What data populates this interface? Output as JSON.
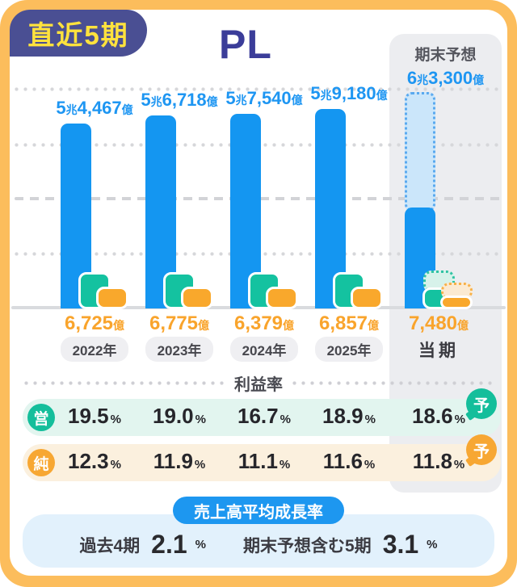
{
  "header": {
    "badge_label": "直近5期",
    "title": "PL",
    "forecast_panel_title": "期末予想"
  },
  "columns": [
    {
      "year": "2022年",
      "revenue": {
        "p1": "5",
        "u1": "兆",
        "p2": "4,467",
        "u2": "億"
      },
      "net": {
        "num": "6,725",
        "unit": "億"
      },
      "op_margin": "19.5",
      "net_margin": "12.3"
    },
    {
      "year": "2023年",
      "revenue": {
        "p1": "5",
        "u1": "兆",
        "p2": "6,718",
        "u2": "億"
      },
      "net": {
        "num": "6,775",
        "unit": "億"
      },
      "op_margin": "19.0",
      "net_margin": "11.9"
    },
    {
      "year": "2024年",
      "revenue": {
        "p1": "5",
        "u1": "兆",
        "p2": "7,540",
        "u2": "億"
      },
      "net": {
        "num": "6,379",
        "unit": "億"
      },
      "op_margin": "16.7",
      "net_margin": "11.1"
    },
    {
      "year": "2025年",
      "revenue": {
        "p1": "5",
        "u1": "兆",
        "p2": "9,180",
        "u2": "億"
      },
      "net": {
        "num": "6,857",
        "unit": "億"
      },
      "op_margin": "18.9",
      "net_margin": "11.6"
    },
    {
      "year": "当期",
      "revenue": {
        "p1": "6",
        "u1": "兆",
        "p2": "3,300",
        "u2": "億"
      },
      "net": {
        "num": "7,480",
        "unit": "億"
      },
      "op_margin": "18.6",
      "net_margin": "11.8"
    }
  ],
  "margins": {
    "section_title": "利益率",
    "op_badge": "営",
    "net_badge": "純",
    "forecast_badge": "予",
    "percent": "%"
  },
  "growth": {
    "badge": "売上高平均成長率",
    "items": [
      {
        "label": "過去4期",
        "value": "2.1"
      },
      {
        "label": "期末予想含む5期",
        "value": "3.1"
      }
    ],
    "percent": "%"
  },
  "colors": {
    "frame_orange": "#FCBD5C",
    "badge_indigo": "#4A4F93",
    "badge_yellow": "#FFE23D",
    "title_indigo": "#3B3D99",
    "revenue_blue": "#1496F1",
    "operating_green": "#14C2A0",
    "net_orange": "#F9A82C",
    "panel_gray": "#ECEDF0",
    "growth_blue": "#1D97F0"
  },
  "chart_data": {
    "type": "bar",
    "title": "PL",
    "period_label": "直近5期",
    "categories": [
      "2022年",
      "2023年",
      "2024年",
      "2025年",
      "当期"
    ],
    "series": [
      {
        "name": "売上高",
        "color": "#1496F1",
        "unit": "億円",
        "values": [
          54467,
          56718,
          57540,
          59180,
          63300
        ],
        "labels": [
          "5兆4,467億",
          "5兆6,718億",
          "5兆7,540億",
          "5兆9,180億",
          "6兆3,300億"
        ],
        "last_is_forecast": true,
        "forecast_label": "期末予想"
      },
      {
        "name": "営業利益",
        "color": "#14C2A0",
        "unit": "億円",
        "values_labeled": false
      },
      {
        "name": "純利益",
        "color": "#F9A82C",
        "unit": "億円",
        "values": [
          6725,
          6775,
          6379,
          6857,
          7480
        ],
        "labels": [
          "6,725億",
          "6,775億",
          "6,379億",
          "6,857億",
          "7,480億"
        ],
        "last_is_forecast": true
      }
    ],
    "margin_rows": [
      {
        "name": "営業利益率",
        "badge": "営",
        "values_pct": [
          19.5,
          19.0,
          16.7,
          18.9,
          18.6
        ],
        "last_is_forecast": true
      },
      {
        "name": "純利益率",
        "badge": "純",
        "values_pct": [
          12.3,
          11.9,
          11.1,
          11.6,
          11.8
        ],
        "last_is_forecast": true
      }
    ],
    "growth_rates": {
      "title": "売上高平均成長率",
      "past_4_periods_pct": 2.1,
      "incl_forecast_5_periods_pct": 3.1
    },
    "grid": "dotted horizontal lines, dashed reference line, solid baseline",
    "legend_position": "none"
  }
}
